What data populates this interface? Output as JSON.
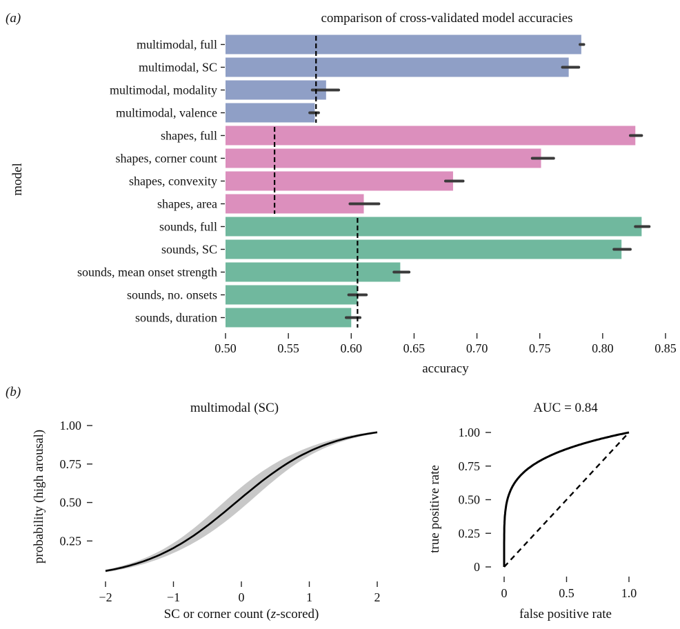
{
  "panel_a_label": "(a)",
  "panel_b_label": "(b)",
  "chart_data": [
    {
      "type": "bar",
      "orientation": "horizontal",
      "title": "comparison of cross-validated model accuracies",
      "xlabel": "accuracy",
      "ylabel": "model",
      "xlim": [
        0.5,
        0.85
      ],
      "xticks": [
        "0.50",
        "0.55",
        "0.60",
        "0.65",
        "0.70",
        "0.75",
        "0.80",
        "0.85"
      ],
      "categories": [
        "multimodal, full",
        "multimodal, SC",
        "multimodal, modality",
        "multimodal, valence",
        "shapes, full",
        "shapes, corner count",
        "shapes, convexity",
        "shapes, area",
        "sounds, full",
        "sounds, SC",
        "sounds, mean onset strength",
        "sounds, no. onsets",
        "sounds, duration"
      ],
      "values": [
        0.783,
        0.773,
        0.58,
        0.571,
        0.826,
        0.751,
        0.681,
        0.61,
        0.831,
        0.815,
        0.639,
        0.605,
        0.6
      ],
      "error_low": [
        0.782,
        0.768,
        0.569,
        0.567,
        0.822,
        0.744,
        0.675,
        0.599,
        0.826,
        0.809,
        0.634,
        0.598,
        0.596
      ],
      "error_high": [
        0.785,
        0.781,
        0.59,
        0.574,
        0.831,
        0.761,
        0.689,
        0.622,
        0.837,
        0.822,
        0.646,
        0.612,
        0.607
      ],
      "groups": [
        {
          "name": "multimodal",
          "color": "#8f9fc6",
          "start": 0,
          "end": 3,
          "baseline": 0.572
        },
        {
          "name": "shapes",
          "color": "#dc8fbd",
          "start": 4,
          "end": 7,
          "baseline": 0.539
        },
        {
          "name": "sounds",
          "color": "#70b89e",
          "start": 8,
          "end": 12,
          "baseline": 0.605
        }
      ],
      "grid": false
    },
    {
      "type": "line",
      "title": "multimodal (SC)",
      "xlabel_parts": [
        "SC or corner count (",
        "z",
        "-scored)"
      ],
      "ylabel": "probability (high arousal)",
      "xlim": [
        -2,
        2
      ],
      "ylim": [
        0.05,
        1.0
      ],
      "xticks": [
        "−2",
        "−1",
        "0",
        "1",
        "2"
      ],
      "yticks": [
        "0.25",
        "0.50",
        "0.75",
        "1.00"
      ],
      "logistic": {
        "intercept": 0.12,
        "slope": 1.48
      },
      "band_color": "#c8c8c8",
      "grid": false
    },
    {
      "type": "line",
      "title": "AUC = 0.84",
      "xlabel": "false positive rate",
      "ylabel": "true positive rate",
      "xlim": [
        0,
        1
      ],
      "ylim": [
        0,
        1
      ],
      "xticks": [
        "0",
        "0.5",
        "1.0"
      ],
      "yticks": [
        "0",
        "0.25",
        "0.50",
        "0.75",
        "1.00"
      ],
      "roc_power": 0.19,
      "diagonal": "dashed",
      "grid": false
    }
  ]
}
